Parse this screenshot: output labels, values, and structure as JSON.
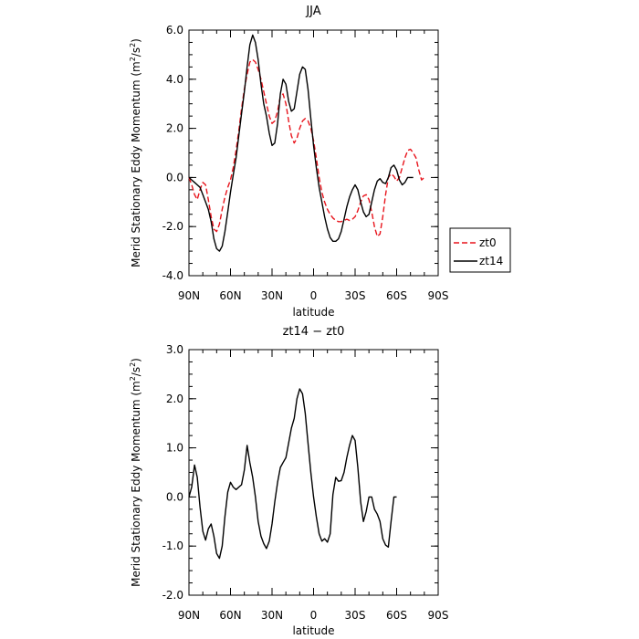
{
  "chart_data": [
    {
      "type": "line",
      "title": "JJA",
      "xlabel": "latitude",
      "ylabel": "Merid Stationary Eddy Momentum (m²/s²)",
      "ylabel_parts": {
        "pre": "Merid Stationary Eddy Momentum (m",
        "sup1": "2",
        "mid": "/s",
        "sup2": "2",
        "post": ")"
      },
      "xlim": [
        90,
        -90
      ],
      "ylim": [
        -4.0,
        6.0
      ],
      "xtick_values": [
        90,
        60,
        30,
        0,
        -30,
        -60,
        -90
      ],
      "xtick_labels": [
        "90N",
        "60N",
        "30N",
        "0",
        "30S",
        "60S",
        "90S"
      ],
      "ytick_values": [
        -4,
        -2,
        0,
        2,
        4,
        6
      ],
      "ytick_labels": [
        "-4.0",
        "-2.0",
        "0.0",
        "2.0",
        "4.0",
        "6.0"
      ],
      "legend": {
        "placement": "right",
        "entries": [
          "zt0",
          "zt14"
        ]
      },
      "series": [
        {
          "name": "zt0",
          "color": "#e8141c",
          "dash": "dashed",
          "points": [
            [
              90,
              0
            ],
            [
              88,
              -0.3
            ],
            [
              86,
              -0.7
            ],
            [
              84,
              -0.9
            ],
            [
              82,
              -0.5
            ],
            [
              80,
              -0.2
            ],
            [
              78,
              -0.3
            ],
            [
              76,
              -0.9
            ],
            [
              74,
              -1.6
            ],
            [
              72,
              -2.1
            ],
            [
              70,
              -2.2
            ],
            [
              68,
              -1.9
            ],
            [
              66,
              -1.3
            ],
            [
              64,
              -0.8
            ],
            [
              62,
              -0.4
            ],
            [
              60,
              -0.1
            ],
            [
              58,
              0.4
            ],
            [
              56,
              1.1
            ],
            [
              54,
              1.9
            ],
            [
              52,
              2.8
            ],
            [
              50,
              3.6
            ],
            [
              48,
              4.2
            ],
            [
              46,
              4.7
            ],
            [
              44,
              4.8
            ],
            [
              42,
              4.7
            ],
            [
              40,
              4.4
            ],
            [
              38,
              4.0
            ],
            [
              36,
              3.5
            ],
            [
              34,
              3.0
            ],
            [
              32,
              2.5
            ],
            [
              30,
              2.2
            ],
            [
              28,
              2.3
            ],
            [
              26,
              2.7
            ],
            [
              24,
              3.3
            ],
            [
              22,
              3.4
            ],
            [
              20,
              3.0
            ],
            [
              18,
              2.3
            ],
            [
              16,
              1.7
            ],
            [
              14,
              1.4
            ],
            [
              12,
              1.6
            ],
            [
              10,
              2.0
            ],
            [
              8,
              2.3
            ],
            [
              6,
              2.4
            ],
            [
              4,
              2.3
            ],
            [
              2,
              2.0
            ],
            [
              0,
              1.5
            ],
            [
              -2,
              0.8
            ],
            [
              -4,
              0.0
            ],
            [
              -6,
              -0.6
            ],
            [
              -8,
              -1.0
            ],
            [
              -10,
              -1.3
            ],
            [
              -12,
              -1.5
            ],
            [
              -14,
              -1.65
            ],
            [
              -16,
              -1.75
            ],
            [
              -18,
              -1.8
            ],
            [
              -20,
              -1.8
            ],
            [
              -22,
              -1.75
            ],
            [
              -24,
              -1.7
            ],
            [
              -26,
              -1.75
            ],
            [
              -28,
              -1.7
            ],
            [
              -30,
              -1.6
            ],
            [
              -32,
              -1.35
            ],
            [
              -34,
              -1.0
            ],
            [
              -36,
              -0.75
            ],
            [
              -38,
              -0.7
            ],
            [
              -40,
              -0.9
            ],
            [
              -42,
              -1.4
            ],
            [
              -44,
              -2.0
            ],
            [
              -46,
              -2.4
            ],
            [
              -48,
              -2.3
            ],
            [
              -50,
              -1.6
            ],
            [
              -52,
              -0.7
            ],
            [
              -54,
              0.0
            ],
            [
              -56,
              0.15
            ],
            [
              -58,
              0.05
            ],
            [
              -60,
              -0.15
            ],
            [
              -62,
              0.0
            ],
            [
              -64,
              0.4
            ],
            [
              -66,
              0.8
            ],
            [
              -68,
              1.1
            ],
            [
              -70,
              1.15
            ],
            [
              -72,
              1.0
            ],
            [
              -74,
              0.8
            ],
            [
              -76,
              0.3
            ],
            [
              -78,
              -0.1
            ],
            [
              -80,
              0.0
            ]
          ]
        },
        {
          "name": "zt14",
          "color": "#000000",
          "dash": "solid",
          "points": [
            [
              90,
              0
            ],
            [
              88,
              -0.1
            ],
            [
              86,
              -0.2
            ],
            [
              84,
              -0.3
            ],
            [
              82,
              -0.4
            ],
            [
              80,
              -0.7
            ],
            [
              78,
              -1.0
            ],
            [
              76,
              -1.3
            ],
            [
              74,
              -1.8
            ],
            [
              72,
              -2.5
            ],
            [
              70,
              -2.9
            ],
            [
              68,
              -3.0
            ],
            [
              66,
              -2.8
            ],
            [
              64,
              -2.2
            ],
            [
              62,
              -1.4
            ],
            [
              60,
              -0.6
            ],
            [
              58,
              0.1
            ],
            [
              56,
              0.8
            ],
            [
              54,
              1.7
            ],
            [
              52,
              2.6
            ],
            [
              50,
              3.5
            ],
            [
              48,
              4.5
            ],
            [
              46,
              5.4
            ],
            [
              44,
              5.8
            ],
            [
              42,
              5.5
            ],
            [
              40,
              4.8
            ],
            [
              38,
              3.8
            ],
            [
              36,
              3.0
            ],
            [
              34,
              2.5
            ],
            [
              32,
              1.8
            ],
            [
              30,
              1.3
            ],
            [
              28,
              1.4
            ],
            [
              26,
              2.2
            ],
            [
              24,
              3.4
            ],
            [
              22,
              4.0
            ],
            [
              20,
              3.8
            ],
            [
              18,
              3.1
            ],
            [
              16,
              2.7
            ],
            [
              14,
              2.8
            ],
            [
              12,
              3.5
            ],
            [
              10,
              4.2
            ],
            [
              8,
              4.5
            ],
            [
              6,
              4.4
            ],
            [
              4,
              3.6
            ],
            [
              2,
              2.4
            ],
            [
              0,
              1.3
            ],
            [
              -2,
              0.4
            ],
            [
              -4,
              -0.4
            ],
            [
              -6,
              -1.0
            ],
            [
              -8,
              -1.6
            ],
            [
              -10,
              -2.1
            ],
            [
              -12,
              -2.45
            ],
            [
              -14,
              -2.6
            ],
            [
              -16,
              -2.6
            ],
            [
              -18,
              -2.5
            ],
            [
              -20,
              -2.2
            ],
            [
              -22,
              -1.7
            ],
            [
              -24,
              -1.2
            ],
            [
              -26,
              -0.8
            ],
            [
              -28,
              -0.5
            ],
            [
              -30,
              -0.3
            ],
            [
              -32,
              -0.5
            ],
            [
              -34,
              -1.0
            ],
            [
              -36,
              -1.4
            ],
            [
              -38,
              -1.6
            ],
            [
              -40,
              -1.5
            ],
            [
              -42,
              -1.0
            ],
            [
              -44,
              -0.5
            ],
            [
              -46,
              -0.15
            ],
            [
              -48,
              -0.05
            ],
            [
              -50,
              -0.2
            ],
            [
              -52,
              -0.25
            ],
            [
              -54,
              0.0
            ],
            [
              -56,
              0.4
            ],
            [
              -58,
              0.5
            ],
            [
              -60,
              0.3
            ],
            [
              -62,
              -0.1
            ],
            [
              -64,
              -0.3
            ],
            [
              -66,
              -0.2
            ],
            [
              -68,
              0.0
            ],
            [
              -70,
              0.0
            ],
            [
              -72,
              0.0
            ]
          ]
        }
      ]
    },
    {
      "type": "line",
      "title": "zt14 − zt0",
      "xlabel": "latitude",
      "ylabel": "Merid Stationary Eddy Momentum (m²/s²)",
      "ylabel_parts": {
        "pre": "Merid Stationary Eddy Momentum (m",
        "sup1": "2",
        "mid": "/s",
        "sup2": "2",
        "post": ")"
      },
      "xlim": [
        90,
        -90
      ],
      "ylim": [
        -2.0,
        3.0
      ],
      "xtick_values": [
        90,
        60,
        30,
        0,
        -30,
        -60,
        -90
      ],
      "xtick_labels": [
        "90N",
        "60N",
        "30N",
        "0",
        "30S",
        "60S",
        "90S"
      ],
      "ytick_values": [
        -2,
        -1,
        0,
        1,
        2,
        3
      ],
      "ytick_labels": [
        "-2.0",
        "-1.0",
        "0.0",
        "1.0",
        "2.0",
        "3.0"
      ],
      "series": [
        {
          "color": "#000000",
          "dash": "solid",
          "points": [
            [
              90,
              0
            ],
            [
              88,
              0.2
            ],
            [
              86,
              0.65
            ],
            [
              84,
              0.4
            ],
            [
              82,
              -0.2
            ],
            [
              80,
              -0.7
            ],
            [
              78,
              -0.88
            ],
            [
              76,
              -0.65
            ],
            [
              74,
              -0.55
            ],
            [
              72,
              -0.8
            ],
            [
              70,
              -1.15
            ],
            [
              68,
              -1.25
            ],
            [
              66,
              -1.0
            ],
            [
              64,
              -0.4
            ],
            [
              62,
              0.1
            ],
            [
              60,
              0.3
            ],
            [
              58,
              0.2
            ],
            [
              56,
              0.15
            ],
            [
              54,
              0.2
            ],
            [
              52,
              0.25
            ],
            [
              50,
              0.55
            ],
            [
              48,
              1.05
            ],
            [
              46,
              0.7
            ],
            [
              44,
              0.4
            ],
            [
              42,
              0.0
            ],
            [
              40,
              -0.5
            ],
            [
              38,
              -0.8
            ],
            [
              36,
              -0.95
            ],
            [
              34,
              -1.05
            ],
            [
              32,
              -0.9
            ],
            [
              30,
              -0.55
            ],
            [
              28,
              -0.1
            ],
            [
              26,
              0.3
            ],
            [
              24,
              0.6
            ],
            [
              22,
              0.7
            ],
            [
              20,
              0.8
            ],
            [
              18,
              1.1
            ],
            [
              16,
              1.4
            ],
            [
              14,
              1.6
            ],
            [
              12,
              2.0
            ],
            [
              10,
              2.2
            ],
            [
              8,
              2.1
            ],
            [
              6,
              1.7
            ],
            [
              4,
              1.1
            ],
            [
              2,
              0.5
            ],
            [
              0,
              0.0
            ],
            [
              -2,
              -0.4
            ],
            [
              -4,
              -0.75
            ],
            [
              -6,
              -0.9
            ],
            [
              -8,
              -0.85
            ],
            [
              -10,
              -0.92
            ],
            [
              -12,
              -0.75
            ],
            [
              -14,
              0.05
            ],
            [
              -16,
              0.4
            ],
            [
              -18,
              0.32
            ],
            [
              -20,
              0.33
            ],
            [
              -22,
              0.5
            ],
            [
              -24,
              0.8
            ],
            [
              -26,
              1.05
            ],
            [
              -28,
              1.25
            ],
            [
              -30,
              1.15
            ],
            [
              -32,
              0.6
            ],
            [
              -34,
              -0.1
            ],
            [
              -36,
              -0.5
            ],
            [
              -38,
              -0.3
            ],
            [
              -40,
              0.0
            ],
            [
              -42,
              0.0
            ],
            [
              -44,
              -0.25
            ],
            [
              -46,
              -0.35
            ],
            [
              -48,
              -0.5
            ],
            [
              -50,
              -0.85
            ],
            [
              -52,
              -0.98
            ],
            [
              -54,
              -1.02
            ],
            [
              -56,
              -0.5
            ],
            [
              -58,
              0.0
            ],
            [
              -60,
              0.0
            ]
          ]
        }
      ]
    }
  ]
}
